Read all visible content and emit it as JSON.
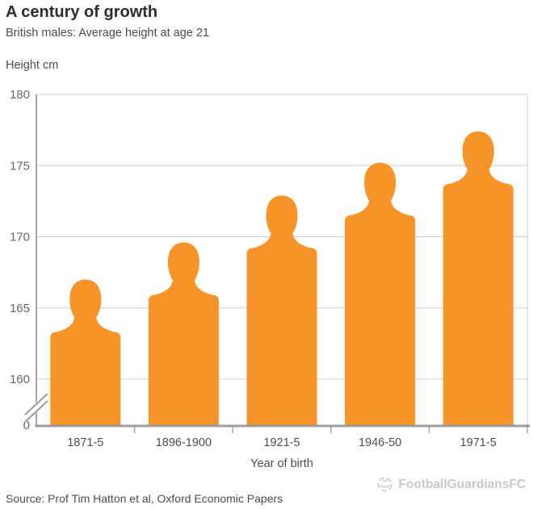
{
  "header": {
    "title": "A century of growth",
    "subtitle": "British males: Average height at age 21"
  },
  "chart_data": {
    "type": "bar",
    "title": "A century of growth",
    "subtitle": "British males: Average height at age 21",
    "ylabel": "Height cm",
    "xlabel": "Year of birth",
    "categories": [
      "1871-5",
      "1896-1900",
      "1921-5",
      "1946-50",
      "1971-5"
    ],
    "values": [
      167.0,
      169.6,
      172.9,
      175.2,
      177.4
    ],
    "unit": "cm",
    "bar_style": "person-silhouette",
    "y_axis": {
      "ticks": [
        180,
        175,
        170,
        165,
        160
      ],
      "base_label": "0",
      "axis_break": true,
      "display_range": [
        160,
        180
      ]
    },
    "grid": true,
    "legend": "none"
  },
  "footer": {
    "source": "Source: Prof Tim Hatton et al, Oxford Economic Papers"
  },
  "watermark": {
    "label": "FootballGuardiansFC"
  },
  "colors": {
    "bar": "#F6942A",
    "grid": "#CCCCCC",
    "axis": "#A6A6A6",
    "baseline": "#999999",
    "title": "#2E2E2E",
    "text": "#4D4D4D",
    "tick_label": "#666666",
    "watermark": "#C8C8C8",
    "background": "#FFFFFF"
  }
}
